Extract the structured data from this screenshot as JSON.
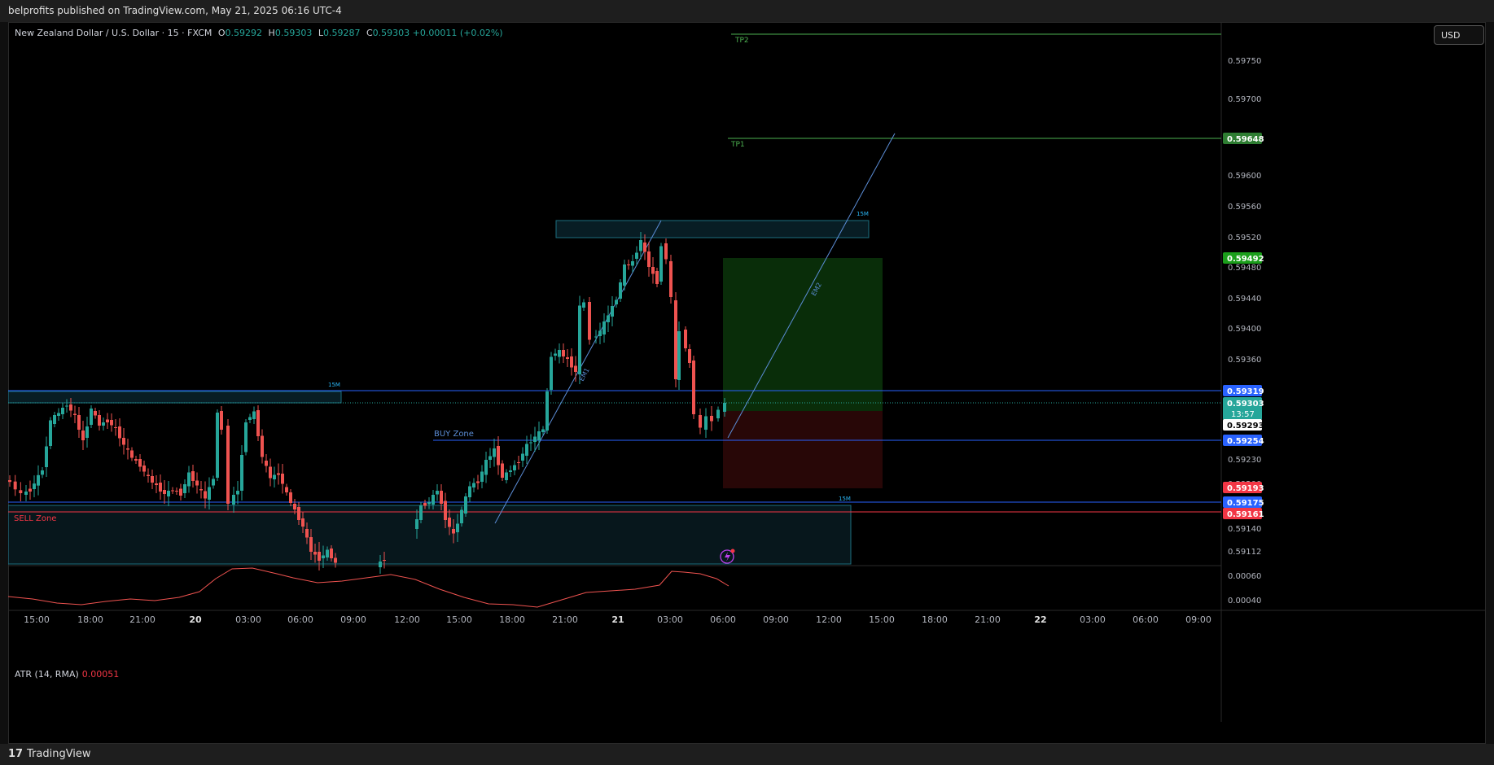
{
  "header": {
    "publish_line": "belprofits published on TradingView.com, May 21, 2025 06:16 UTC-4"
  },
  "legend": {
    "symbol": "New Zealand Dollar / U.S. Dollar · 15 · FXCM",
    "o_label": "O",
    "o_value": "0.59292",
    "h_label": "H",
    "h_value": "0.59303",
    "l_label": "L",
    "l_value": "0.59287",
    "c_label": "C",
    "c_value": "0.59303",
    "change": "+0.00011 (+0.02%)"
  },
  "currency_button": "USD",
  "atr": {
    "label": "ATR (14, RMA)",
    "value": "0.00051",
    "axis_ticks": [
      "0.00060",
      "0.00040"
    ]
  },
  "price_axis": {
    "ticks": [
      "0.59750",
      "0.59700",
      "0.59600",
      "0.59560",
      "0.59520",
      "0.59480",
      "0.59440",
      "0.59400",
      "0.59360",
      "0.59230",
      "0.59140",
      "0.59112"
    ],
    "partial_ticks": [
      "0.59260",
      "0.59200"
    ]
  },
  "price_badges": [
    {
      "value": "0.59648",
      "color": "#2e7d32"
    },
    {
      "value": "0.59492",
      "color": "#1b9e1b"
    },
    {
      "value": "0.59319",
      "color": "#2962ff"
    },
    {
      "value": "0.59303",
      "sub": "13:57",
      "color": "#26a69a"
    },
    {
      "value": "0.59293",
      "color": "#ffffff"
    },
    {
      "value": "0.59254",
      "color": "#2962ff"
    },
    {
      "value": "0.59193",
      "color": "#f23645"
    },
    {
      "value": "0.59175",
      "color": "#2962ff"
    },
    {
      "value": "0.59161",
      "color": "#f23645"
    }
  ],
  "time_axis": [
    "15:00",
    "18:00",
    "21:00",
    "20",
    "03:00",
    "06:00",
    "09:00",
    "12:00",
    "15:00",
    "18:00",
    "21:00",
    "21",
    "03:00",
    "06:00",
    "09:00",
    "12:00",
    "15:00",
    "18:00",
    "21:00",
    "22",
    "03:00",
    "06:00",
    "09:00"
  ],
  "annotations": {
    "tp2": "TP2",
    "tp1": "TP1",
    "buy_zone": "BUY Zone",
    "sell_zone": "SELL Zone",
    "tf_top": "15M",
    "tf_left": "15M",
    "tf_bottom": "15M",
    "em1": "EM1",
    "em2": "EM2"
  },
  "colors": {
    "up": "#26a69a",
    "down": "#ef5350",
    "line_blue": "#2962ff",
    "line_red": "#f23645",
    "tp_green": "#4caf50"
  },
  "footer": {
    "brand": "TradingView",
    "logo_icon": "tradingview-logo-icon"
  }
}
